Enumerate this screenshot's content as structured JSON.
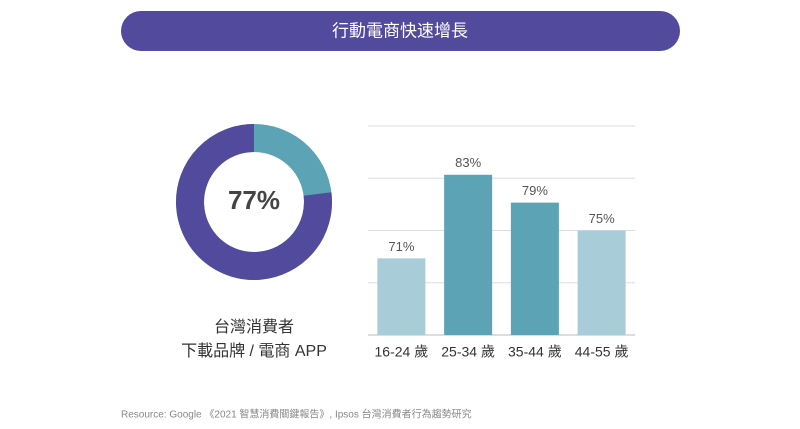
{
  "title": "行動電商快速增長",
  "source": "Resource: Google 《2021 智慧消費關鍵報告》, Ipsos 台灣消費者行為趨勢研究",
  "chart_data": [
    {
      "type": "donut",
      "values": [
        77
      ],
      "value_labels": [
        "77%"
      ],
      "color": "#524a9c",
      "track_color": "#5ba3b5",
      "caption": [
        "台灣消費者",
        "下載品牌 / 電商 APP"
      ]
    },
    {
      "type": "bar",
      "categories": [
        "16-24 歲",
        "25-34 歲",
        "35-44 歲",
        "44-55 歲"
      ],
      "values": [
        71,
        83,
        79,
        75
      ],
      "value_labels": [
        "71%",
        "83%",
        "79%",
        "75%"
      ],
      "colors": [
        "#a9ccd9",
        "#5ba3b5",
        "#5ba3b5",
        "#a9ccd9"
      ],
      "ylim": [
        60,
        90
      ],
      "yticks": [
        60,
        67.5,
        75,
        82.5,
        90
      ],
      "grid": true
    }
  ]
}
